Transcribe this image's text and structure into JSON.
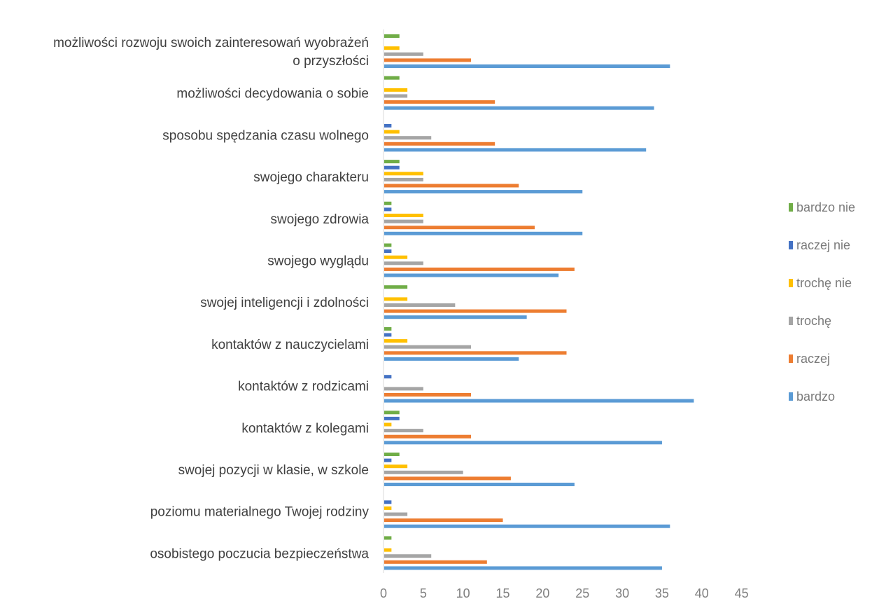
{
  "chart_data": {
    "type": "bar",
    "orientation": "horizontal",
    "categories": [
      [
        "możliwości rozwoju swoich zainteresowań wyobrażeń",
        "o przyszłości"
      ],
      [
        "możliwości decydowania o sobie"
      ],
      [
        "sposobu spędzania czasu wolnego"
      ],
      [
        "swojego charakteru"
      ],
      [
        "swojego zdrowia"
      ],
      [
        "swojego wyglądu"
      ],
      [
        "swojej inteligencji i zdolności"
      ],
      [
        "kontaktów z nauczycielami"
      ],
      [
        "kontaktów z rodzicami"
      ],
      [
        "kontaktów z kolegami"
      ],
      [
        "swojej pozycji w klasie, w szkole"
      ],
      [
        "poziomu materialnego Twojej rodziny"
      ],
      [
        "osobistego poczucia bezpieczeństwa"
      ]
    ],
    "series": [
      {
        "name": "bardzo nie",
        "color": "#70ad47",
        "values": [
          2,
          2,
          0,
          2,
          1,
          1,
          3,
          1,
          0,
          2,
          2,
          0,
          1
        ]
      },
      {
        "name": "raczej nie",
        "color": "#4472c4",
        "values": [
          0,
          0,
          1,
          2,
          1,
          1,
          0,
          1,
          1,
          2,
          1,
          1,
          0
        ]
      },
      {
        "name": "trochę nie",
        "color": "#ffc000",
        "values": [
          2,
          3,
          2,
          5,
          5,
          3,
          3,
          3,
          0,
          1,
          3,
          1,
          1
        ]
      },
      {
        "name": "trochę",
        "color": "#a5a5a5",
        "values": [
          5,
          3,
          6,
          5,
          5,
          5,
          9,
          11,
          5,
          5,
          10,
          3,
          6
        ]
      },
      {
        "name": "raczej",
        "color": "#ed7d31",
        "values": [
          11,
          14,
          14,
          17,
          19,
          24,
          23,
          23,
          11,
          11,
          16,
          15,
          13
        ]
      },
      {
        "name": "bardzo",
        "color": "#5b9bd5",
        "values": [
          36,
          34,
          33,
          25,
          25,
          22,
          18,
          17,
          39,
          35,
          24,
          36,
          35
        ]
      }
    ],
    "xlim": [
      0,
      45
    ],
    "x_ticks": [
      "0",
      "5",
      "10",
      "15",
      "20",
      "25",
      "30",
      "35",
      "40",
      "45"
    ],
    "grid": false,
    "legend_position": "right",
    "title": "",
    "xlabel": "",
    "ylabel": ""
  }
}
